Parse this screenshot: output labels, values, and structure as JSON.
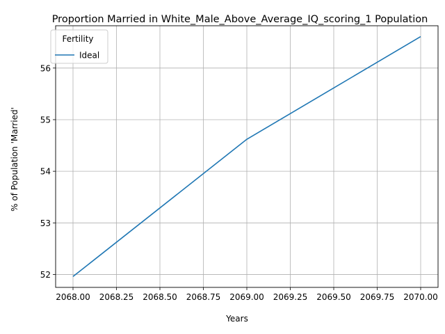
{
  "chart_data": {
    "type": "line",
    "title": "Proportion Married in White_Male_Above_Average_IQ_scoring_1 Population",
    "xlabel": "Years",
    "ylabel": "% of Population 'Married'",
    "x": [
      2068,
      2069,
      2070
    ],
    "series": [
      {
        "name": "Ideal",
        "values": [
          51.96,
          54.62,
          56.61
        ],
        "color": "#1f77b4"
      }
    ],
    "xlim": [
      2067.9,
      2070.1
    ],
    "ylim": [
      51.75,
      56.82
    ],
    "xticks": [
      2068.0,
      2068.25,
      2068.5,
      2068.75,
      2069.0,
      2069.25,
      2069.5,
      2069.75,
      2070.0
    ],
    "xtick_labels": [
      "2068.00",
      "2068.25",
      "2068.50",
      "2068.75",
      "2069.00",
      "2069.25",
      "2069.50",
      "2069.75",
      "2070.00"
    ],
    "yticks": [
      52,
      53,
      54,
      55,
      56
    ],
    "ytick_labels": [
      "52",
      "53",
      "54",
      "55",
      "56"
    ],
    "grid": true,
    "legend": {
      "title": "Fertility",
      "placement": "top-left"
    }
  }
}
